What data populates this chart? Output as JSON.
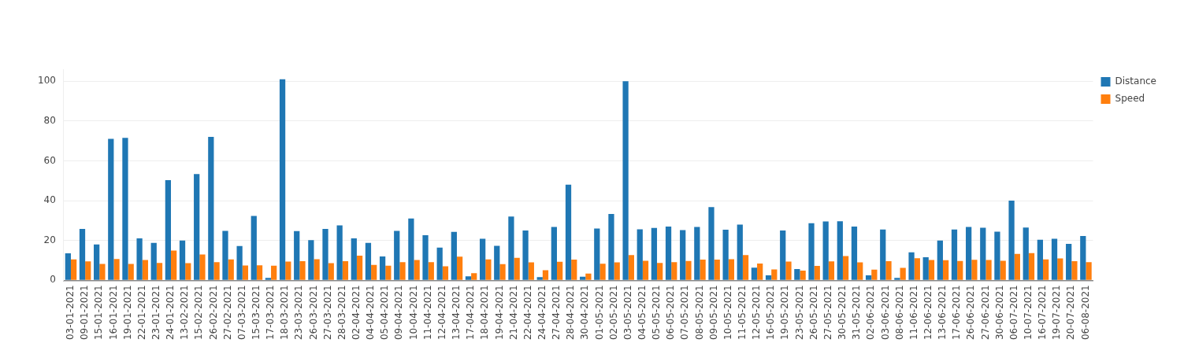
{
  "chart_data": {
    "type": "bar",
    "categories": [
      "03-01-2021",
      "09-01-2021",
      "15-01-2021",
      "16-01-2021",
      "19-01-2021",
      "22-01-2021",
      "23-01-2021",
      "24-01-2021",
      "13-02-2021",
      "15-02-2021",
      "26-02-2021",
      "27-02-2021",
      "07-03-2021",
      "15-03-2021",
      "17-03-2021",
      "18-03-2021",
      "23-03-2021",
      "26-03-2021",
      "27-03-2021",
      "28-03-2021",
      "02-04-2021",
      "04-04-2021",
      "05-04-2021",
      "09-04-2021",
      "10-04-2021",
      "11-04-2021",
      "12-04-2021",
      "13-04-2021",
      "17-04-2021",
      "18-04-2021",
      "19-04-2021",
      "21-04-2021",
      "22-04-2021",
      "24-04-2021",
      "27-04-2021",
      "28-04-2021",
      "30-04-2021",
      "01-05-2021",
      "02-05-2021",
      "03-05-2021",
      "04-05-2021",
      "05-05-2021",
      "06-05-2021",
      "07-05-2021",
      "08-05-2021",
      "09-05-2021",
      "10-05-2021",
      "11-05-2021",
      "12-05-2021",
      "16-05-2021",
      "19-05-2021",
      "23-05-2021",
      "26-05-2021",
      "27-05-2021",
      "30-05-2021",
      "31-05-2021",
      "02-06-2021",
      "03-06-2021",
      "08-06-2021",
      "11-06-2021",
      "12-06-2021",
      "13-06-2021",
      "17-06-2021",
      "26-06-2021",
      "27-06-2021",
      "30-06-2021",
      "06-07-2021",
      "10-07-2021",
      "16-07-2021",
      "19-07-2021",
      "20-07-2021",
      "06-08-2021"
    ],
    "series": [
      {
        "name": "Distance",
        "color": "#1f77b4",
        "values": [
          13.5,
          25.8,
          18,
          71,
          71.5,
          21,
          18.8,
          50.3,
          20,
          53.3,
          72,
          24.8,
          17.2,
          32.3,
          1.2,
          101,
          24.7,
          20.2,
          25.8,
          27.6,
          21,
          18.8,
          12,
          24.8,
          31,
          22.6,
          16.4,
          24.3,
          2,
          20.8,
          17.3,
          32,
          25,
          1.6,
          26.8,
          48,
          1.8,
          26,
          33.3,
          100,
          25.6,
          26.3,
          27,
          25.2,
          26.8,
          36.8,
          25.4,
          28,
          6.3,
          2.5,
          25,
          5.6,
          28.7,
          29.5,
          29.6,
          27,
          2.5,
          25.5,
          1.2,
          14,
          11.6,
          20,
          25.5,
          26.8,
          26.4,
          24.4,
          40,
          26.5,
          20.4,
          20.8,
          18.3,
          22.2
        ]
      },
      {
        "name": "Speed",
        "color": "#ff7f0e",
        "values": [
          10.5,
          9.5,
          8.2,
          10.7,
          8.2,
          10.2,
          8.7,
          14.9,
          8.6,
          12.9,
          9.1,
          10.5,
          7.4,
          7.5,
          7.3,
          9.4,
          9.6,
          10.6,
          8.6,
          9.6,
          12.4,
          7.7,
          7.3,
          9.1,
          10.2,
          9.1,
          7,
          11.9,
          3.6,
          10.5,
          8.1,
          11.3,
          9,
          5,
          9.3,
          10.4,
          3.4,
          8.3,
          9,
          12.6,
          9.8,
          8.7,
          9.1,
          9.7,
          10.4,
          10.4,
          10.6,
          12.6,
          8.4,
          5.4,
          9.4,
          4.8,
          7.2,
          9.5,
          12.2,
          9,
          5.3,
          9.6,
          6.2,
          11.1,
          10.2,
          10.1,
          9.7,
          10.3,
          10.2,
          9.8,
          13.2,
          13.6,
          10.5,
          11,
          9.6,
          9.1
        ]
      }
    ],
    "ylim": [
      0,
      106
    ],
    "yticks": [
      0,
      20,
      40,
      60,
      80,
      100
    ],
    "grid": "y",
    "legend": "top right"
  }
}
